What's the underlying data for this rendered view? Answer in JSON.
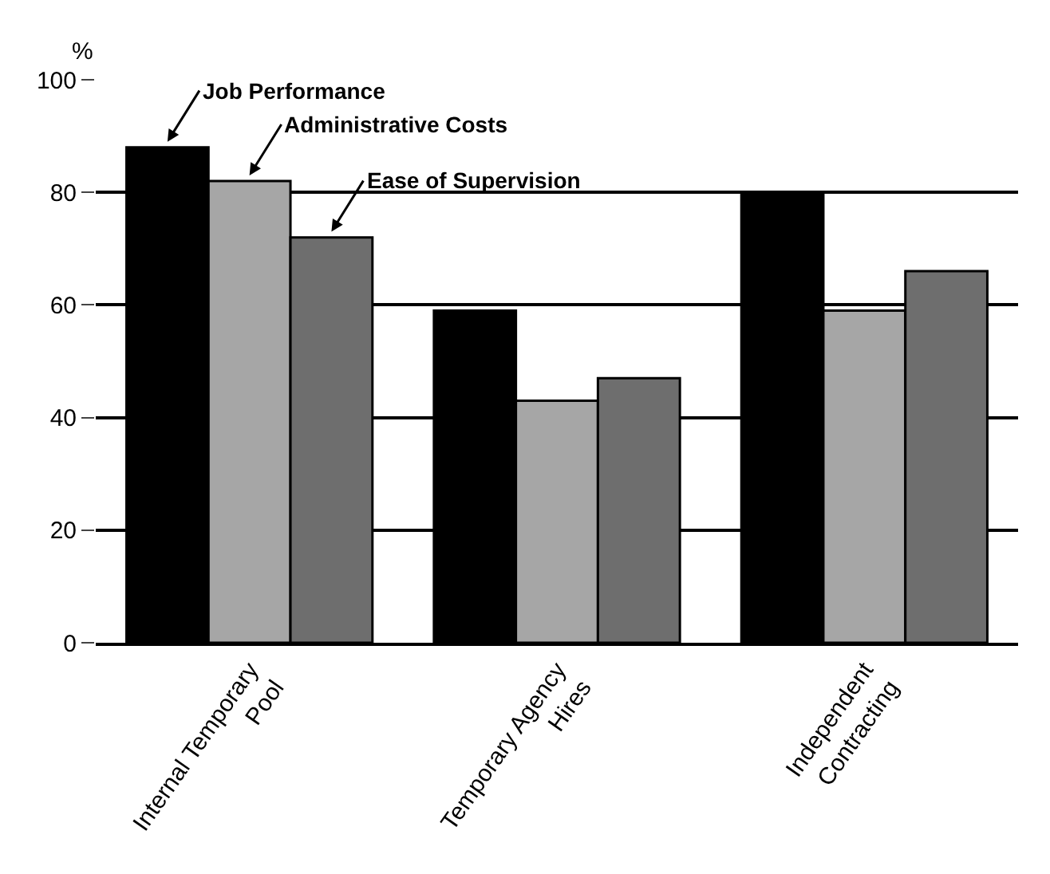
{
  "chart_data": {
    "type": "bar",
    "ylabel": "%",
    "categories": [
      "Internal Temporary Pool",
      "Temporary Agency Hires",
      "Independent Contracting"
    ],
    "series": [
      {
        "name": "Job Performance",
        "color": "#000000",
        "values": [
          88,
          59,
          80
        ]
      },
      {
        "name": "Administrative Costs",
        "color": "#a6a6a6",
        "values": [
          82,
          43,
          59
        ]
      },
      {
        "name": "Ease of Supervision",
        "color": "#6e6e6e",
        "values": [
          72,
          47,
          66
        ]
      }
    ],
    "ylim": [
      0,
      100
    ],
    "yticks": [
      0,
      20,
      40,
      60,
      80,
      100
    ],
    "grid": "y",
    "legend": false
  }
}
